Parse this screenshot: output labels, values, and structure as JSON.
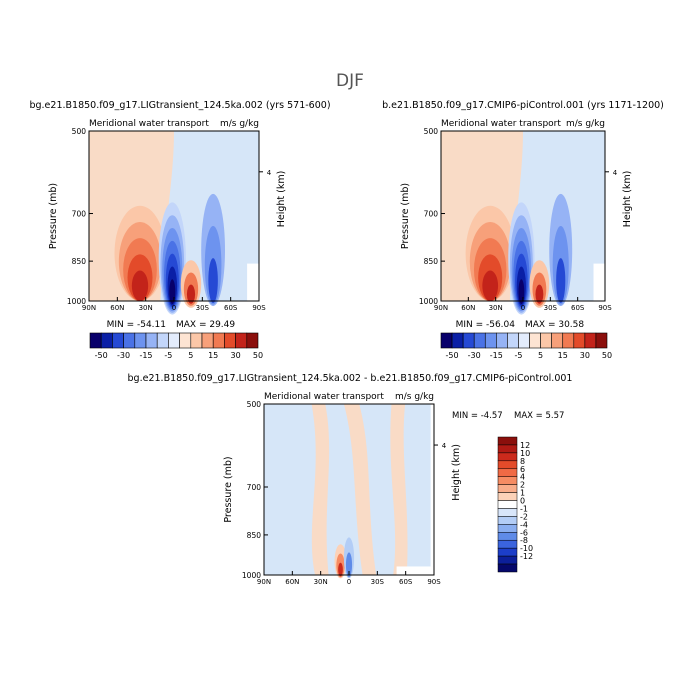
{
  "page_title": "DJF",
  "colors": {
    "land": "#f9dbc6",
    "sea": "#d6e6f8",
    "white": "#ffffff",
    "axis": "#000000"
  },
  "chart_data": [
    {
      "type": "heatmap",
      "title": "bg.e21.B1850.f09_g17.LIGtransient_124.5ka.002 (yrs 571-600)",
      "subtitle": "Meridional water transport",
      "units": "m/s g/kg",
      "xlabel": "",
      "ylabel": "Pressure (mb)",
      "y2label": "Height (km)",
      "x_ticks": [
        "90N",
        "60N",
        "30N",
        "0",
        "30S",
        "60S",
        "90S"
      ],
      "x_values": [
        90,
        60,
        30,
        0,
        -30,
        -60,
        -90
      ],
      "y_ticks": [
        500,
        700,
        850,
        1000
      ],
      "y2_ticks": [
        4
      ],
      "ylim": [
        1000,
        500
      ],
      "min_label": "MIN = -54.11",
      "max_label": "MAX =  29.49",
      "colorbar": {
        "labels": [
          "-50",
          "-30",
          "-15",
          "-5",
          "5",
          "15",
          "30",
          "50"
        ],
        "colors": [
          "#08006b",
          "#0a1fa6",
          "#2549d4",
          "#4a72e6",
          "#6d93ef",
          "#96b3f5",
          "#c3d6fa",
          "#e3ecfc",
          "#fde4d3",
          "#fbc7a8",
          "#f7a07a",
          "#f17a52",
          "#e34b2a",
          "#c3231a",
          "#8b0f0c"
        ]
      }
    },
    {
      "type": "heatmap",
      "title": "b.e21.B1850.f09_g17.CMIP6-piControl.001 (yrs 1171-1200)",
      "subtitle": "Meridional water transport",
      "units": "m/s g/kg",
      "xlabel": "",
      "ylabel": "Pressure (mb)",
      "y2label": "Height (km)",
      "x_ticks": [
        "90N",
        "60N",
        "30N",
        "0",
        "30S",
        "60S",
        "90S"
      ],
      "x_values": [
        90,
        60,
        30,
        0,
        -30,
        -60,
        -90
      ],
      "y_ticks": [
        500,
        700,
        850,
        1000
      ],
      "y2_ticks": [
        4
      ],
      "ylim": [
        1000,
        500
      ],
      "min_label": "MIN = -56.04",
      "max_label": "MAX =  30.58",
      "colorbar": {
        "labels": [
          "-50",
          "-30",
          "-15",
          "-5",
          "5",
          "15",
          "30",
          "50"
        ],
        "colors": [
          "#08006b",
          "#0a1fa6",
          "#2549d4",
          "#4a72e6",
          "#6d93ef",
          "#96b3f5",
          "#c3d6fa",
          "#e3ecfc",
          "#fde4d3",
          "#fbc7a8",
          "#f7a07a",
          "#f17a52",
          "#e34b2a",
          "#c3231a",
          "#8b0f0c"
        ]
      }
    },
    {
      "type": "heatmap",
      "title": "bg.e21.B1850.f09_g17.LIGtransient_124.5ka.002 - b.e21.B1850.f09_g17.CMIP6-piControl.001",
      "subtitle": "Meridional water transport",
      "units": "m/s g/kg",
      "xlabel": "",
      "ylabel": "Pressure (mb)",
      "y2label": "Height (km)",
      "x_ticks": [
        "90N",
        "60N",
        "30N",
        "0",
        "30S",
        "60S",
        "90S"
      ],
      "x_values": [
        90,
        60,
        30,
        0,
        -30,
        -60,
        -90
      ],
      "y_ticks": [
        500,
        700,
        850,
        1000
      ],
      "y2_ticks": [
        4
      ],
      "ylim": [
        1000,
        500
      ],
      "min_label": "MIN =  -4.57",
      "max_label": "MAX =   5.57",
      "colorbar": {
        "labels": [
          "12",
          "10",
          "8",
          "6",
          "4",
          "2",
          "1",
          "0",
          "-1",
          "-2",
          "-4",
          "-6",
          "-8",
          "-10",
          "-12"
        ],
        "colors": [
          "#8b0f0c",
          "#b01a14",
          "#cc2a1c",
          "#e34b2a",
          "#f06a45",
          "#f68c63",
          "#f9ad8a",
          "#fcd2b8",
          "#ffffff",
          "#d8e6fa",
          "#b3cdf6",
          "#8aaef0",
          "#5f8be8",
          "#3b64de",
          "#1c3ec9",
          "#0c1f9a",
          "#05086b"
        ]
      }
    }
  ]
}
